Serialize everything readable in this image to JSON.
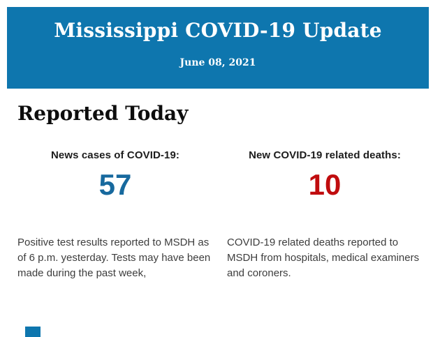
{
  "header": {
    "title": "Mississippi COVID-19 Update",
    "date": "June 08, 2021",
    "background_color": "#0e76ae",
    "text_color": "#ffffff"
  },
  "main": {
    "section_title": "Reported Today",
    "stats": [
      {
        "label": "News cases of COVID-19:",
        "value": "57",
        "value_color": "#17699e",
        "description": "Positive test results reported to MSDH as of 6 p.m. yesterday. Tests may have been made during the past week,"
      },
      {
        "label": "New COVID-19 related deaths:",
        "value": "10",
        "value_color": "#c00c0e",
        "description": "COVID-19 related deaths reported to MSDH from hospitals, medical examiners and coroners."
      }
    ]
  },
  "footer": {
    "fragment_color": "#0e76ae"
  }
}
